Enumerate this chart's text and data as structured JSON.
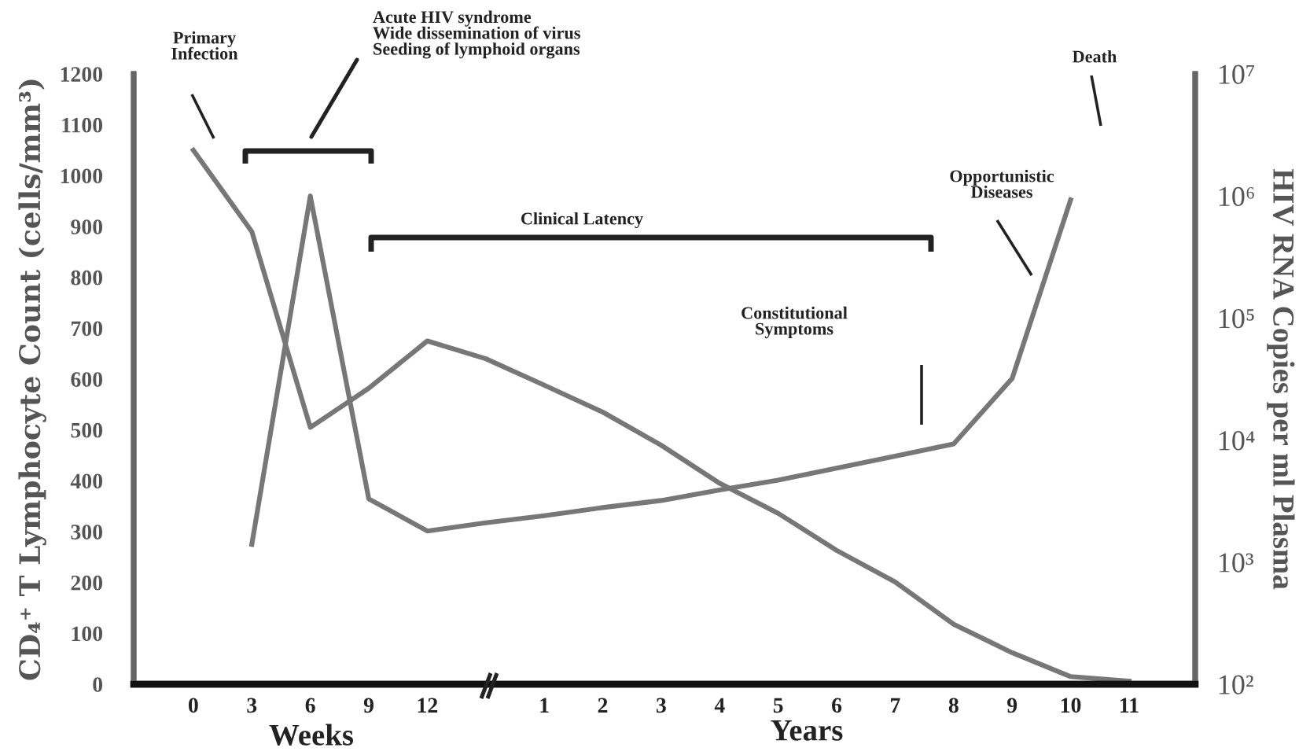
{
  "chart_data": {
    "type": "line",
    "categories": [
      "0",
      "3",
      "6",
      "9",
      "12",
      null,
      "1",
      "2",
      "3",
      "4",
      "5",
      "6",
      "7",
      "8",
      "9",
      "10",
      "11"
    ],
    "xlabel": "Weeks",
    "ylabel": "CD₄⁺ T Lymphocyte Count (cells/mm³)",
    "y2label": "HIV RNA Copies per ml Plasma",
    "series": [
      {
        "color": "#777777",
        "values": [
          1050,
          890,
          505,
          582,
          675,
          640,
          588,
          535,
          470,
          395,
          336,
          263,
          201,
          118,
          62,
          15,
          6
        ]
      },
      {
        "color": "#777777",
        "axis": "y2",
        "values": [
          null,
          1400,
          1000000,
          3300,
          1800,
          2100,
          2400,
          2800,
          3200,
          3900,
          4700,
          5900,
          7400,
          9300,
          32000,
          930000,
          null
        ]
      }
    ],
    "ylim": [
      0,
      1200
    ],
    "yticks": [
      0,
      100,
      200,
      300,
      400,
      500,
      600,
      700,
      800,
      900,
      1000,
      1100,
      1200
    ],
    "log": "y2",
    "y2lim": [
      100,
      10000000
    ],
    "y2ticks": [
      {
        "value": 100,
        "label": "10²"
      },
      {
        "value": 1000,
        "label": "10³"
      },
      {
        "value": 10000,
        "label": "10⁴"
      },
      {
        "value": 100000,
        "label": "10⁵"
      },
      {
        "value": 1000000,
        "label": "10⁶"
      },
      {
        "value": 10000000,
        "label": "10⁷"
      }
    ],
    "grid": false,
    "legend": false,
    "marker": "none",
    "line_style": "solid",
    "annotations": [
      "Primary\nInfection",
      "Acute HIV syndrome\nWide dissemination of virus\nSeeding of lymphoid organs",
      "Clinical Latency",
      "Constitutional\nSymptoms",
      "Opportunistic\nDiseases",
      "Death",
      "Years"
    ]
  }
}
